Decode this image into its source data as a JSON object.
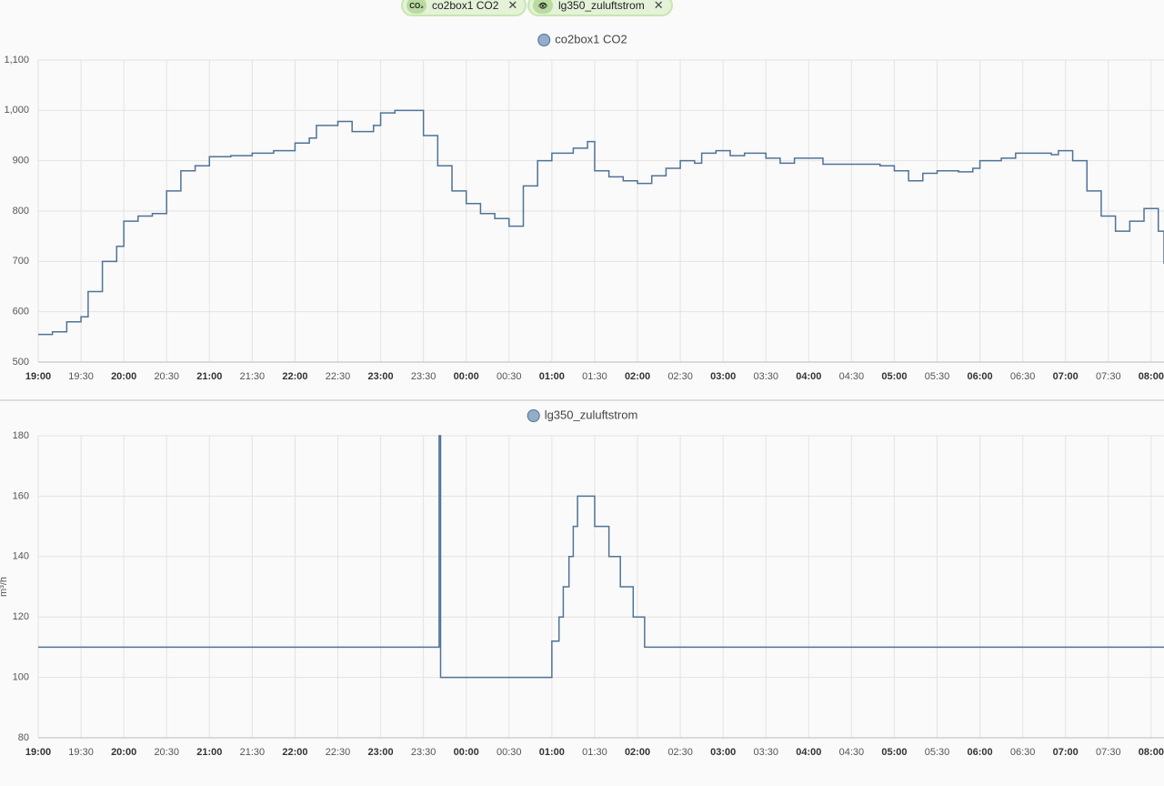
{
  "chips": [
    "co2box1 CO2",
    "lg350_zuluftstrom"
  ],
  "chart_data": [
    {
      "type": "line",
      "step": true,
      "x": [
        "19:00",
        "19:10",
        "19:20",
        "19:30",
        "19:35",
        "19:45",
        "19:55",
        "20:00",
        "20:10",
        "20:20",
        "20:30",
        "20:40",
        "20:50",
        "21:00",
        "21:15",
        "21:30",
        "21:45",
        "22:00",
        "22:10",
        "22:15",
        "22:30",
        "22:40",
        "22:55",
        "23:00",
        "23:10",
        "23:20",
        "23:30",
        "23:40",
        "23:50",
        "00:00",
        "00:10",
        "00:20",
        "00:30",
        "00:40",
        "00:50",
        "01:00",
        "01:15",
        "01:25",
        "01:30",
        "01:40",
        "01:50",
        "02:00",
        "02:10",
        "02:20",
        "02:30",
        "02:40",
        "02:45",
        "02:55",
        "03:05",
        "03:15",
        "03:30",
        "03:40",
        "03:50",
        "04:05",
        "04:10",
        "04:30",
        "04:50",
        "05:00",
        "05:10",
        "05:20",
        "05:30",
        "05:45",
        "05:55",
        "06:00",
        "06:15",
        "06:25",
        "06:40",
        "06:50",
        "06:55",
        "07:05",
        "07:15",
        "07:25",
        "07:35",
        "07:45",
        "07:55",
        "08:05",
        "08:09"
      ],
      "series": [
        {
          "name": "co2box1 CO2",
          "color": "#4f7396",
          "values": [
            555,
            560,
            580,
            590,
            640,
            700,
            730,
            780,
            790,
            795,
            840,
            880,
            890,
            908,
            910,
            915,
            920,
            935,
            945,
            970,
            978,
            958,
            970,
            995,
            1000,
            1000,
            950,
            890,
            840,
            815,
            795,
            785,
            770,
            850,
            900,
            915,
            925,
            938,
            880,
            868,
            860,
            855,
            870,
            885,
            900,
            895,
            915,
            920,
            910,
            915,
            905,
            895,
            905,
            905,
            893,
            893,
            890,
            880,
            860,
            875,
            880,
            878,
            885,
            900,
            905,
            915,
            915,
            912,
            920,
            900,
            840,
            790,
            760,
            780,
            805,
            760,
            695
          ]
        }
      ],
      "xlim": [
        "19:00",
        "08:09"
      ],
      "xticks": [
        "19:00",
        "19:30",
        "20:00",
        "20:30",
        "21:00",
        "21:30",
        "22:00",
        "22:30",
        "23:00",
        "23:30",
        "00:00",
        "00:30",
        "01:00",
        "01:30",
        "02:00",
        "02:30",
        "03:00",
        "03:30",
        "04:00",
        "04:30",
        "05:00",
        "05:30",
        "06:00",
        "06:30",
        "07:00",
        "07:30",
        "08:00"
      ],
      "ylim": [
        500,
        1100
      ],
      "yticks": [
        500,
        600,
        700,
        800,
        900,
        {
          "value": 1000,
          "label": "1,000"
        },
        {
          "value": 1100,
          "label": "1,100"
        }
      ],
      "grid": true
    },
    {
      "type": "line",
      "step": true,
      "ylabel": "m³/h",
      "x": [
        "19:00",
        "23:40",
        "23:41",
        "23:42",
        "00:55",
        "01:00",
        "01:05",
        "01:08",
        "01:12",
        "01:15",
        "01:18",
        "01:30",
        "01:40",
        "01:48",
        "01:57",
        "02:05",
        "08:09"
      ],
      "series": [
        {
          "name": "lg350_zuluftstrom",
          "color": "#4f7396",
          "values": [
            110,
            110,
            180,
            100,
            100,
            112,
            120,
            130,
            140,
            150,
            160,
            150,
            140,
            130,
            120,
            110,
            110
          ]
        }
      ],
      "xlim": [
        "19:00",
        "08:09"
      ],
      "xticks": [
        "19:00",
        "19:30",
        "20:00",
        "20:30",
        "21:00",
        "21:30",
        "22:00",
        "22:30",
        "23:00",
        "23:30",
        "00:00",
        "00:30",
        "01:00",
        "01:30",
        "02:00",
        "02:30",
        "03:00",
        "03:30",
        "04:00",
        "04:30",
        "05:00",
        "05:30",
        "06:00",
        "06:30",
        "07:00",
        "07:30",
        "08:00"
      ],
      "ylim": [
        80,
        180
      ],
      "yticks": [
        80,
        100,
        120,
        140,
        160,
        180
      ],
      "grid": true
    }
  ]
}
